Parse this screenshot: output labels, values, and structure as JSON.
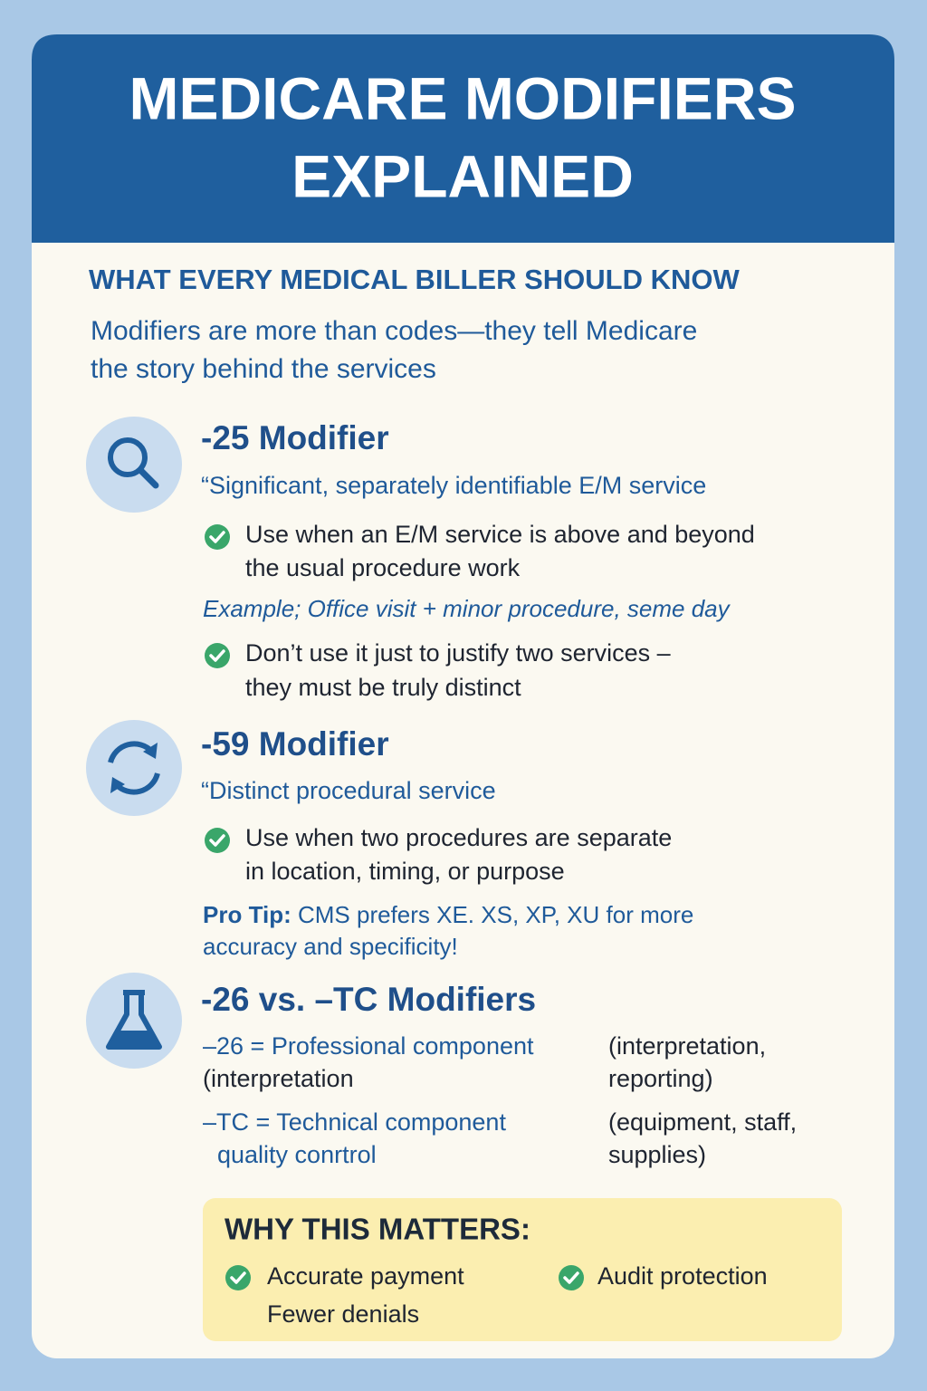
{
  "header": {
    "title_lines": [
      "MEDICARE MODIFIERS",
      "EXPLAINED"
    ]
  },
  "subtitle": "WHAT EVERY MEDICAL BILLER SHOULD KNOW",
  "intro_lines": [
    "Modifiers are more than codes—they tell Medicare",
    "the story behind the services"
  ],
  "sections": [
    {
      "heading": "-25 Modifier",
      "quote": "“Significant, separately identifiable E/M service",
      "bullets": [
        [
          "Use when an E/M service is above and beyond",
          "the usual procedure work"
        ],
        [
          "Don’t use it just to justify two services –",
          "they must be truly distinct"
        ]
      ],
      "example": "Example; Office visit + minor procedure, seme day"
    },
    {
      "heading": "-59 Modifier",
      "quote": "“Distinct procedural service",
      "bullets": [
        [
          "Use when two procedures are separate",
          "in location, timing, or purpose"
        ]
      ],
      "tip_label": "Pro Tip:",
      "tip_lines": [
        "CMS prefers XE. XS, XP, XU for more",
        "accuracy and specificity!"
      ]
    },
    {
      "heading": "-26 vs. –TC Modifiers",
      "rows": [
        {
          "left": [
            "–26 = Professional component",
            "(interpretation"
          ],
          "right": [
            "(interpretation,",
            "reporting)"
          ]
        },
        {
          "left": [
            "–TC = Technical component",
            "quality conrtrol"
          ],
          "right": [
            "(equipment, staff,",
            "supplies)"
          ]
        }
      ]
    }
  ],
  "why": {
    "title": "WHY THIS MATTERS:",
    "items": [
      "Accurate payment",
      "Audit protection",
      "Fewer denials"
    ]
  }
}
